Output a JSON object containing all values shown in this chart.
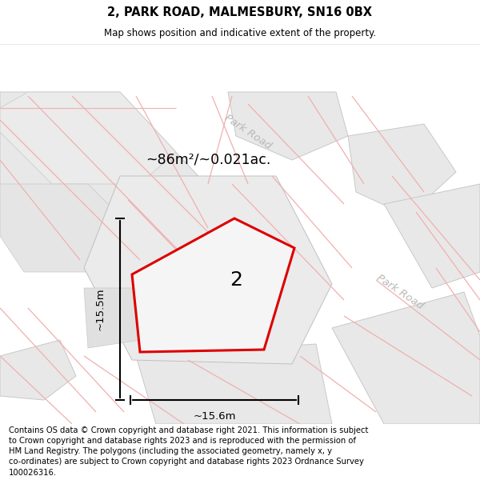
{
  "title": "2, PARK ROAD, MALMESBURY, SN16 0BX",
  "subtitle": "Map shows position and indicative extent of the property.",
  "footer": "Contains OS data © Crown copyright and database right 2021. This information is subject\nto Crown copyright and database rights 2023 and is reproduced with the permission of\nHM Land Registry. The polygons (including the associated geometry, namely x, y\nco-ordinates) are subject to Crown copyright and database rights 2023 Ordnance Survey\n100026316.",
  "area_label": "~86m²/~0.021ac.",
  "width_label": "~15.6m",
  "height_label": "~15.5m",
  "plot_number": "2",
  "map_bg": "#ffffff",
  "plot_stroke": "#dd0000",
  "plot_fill": "#f5f5f5",
  "neighbor_fill": "#e8e8e8",
  "neighbor_stroke": "#c8c8c8",
  "pink_line_color": "#f0b0b0",
  "road_label_color": "#b8b8b8",
  "road_bg_color": "#f0f0f0"
}
